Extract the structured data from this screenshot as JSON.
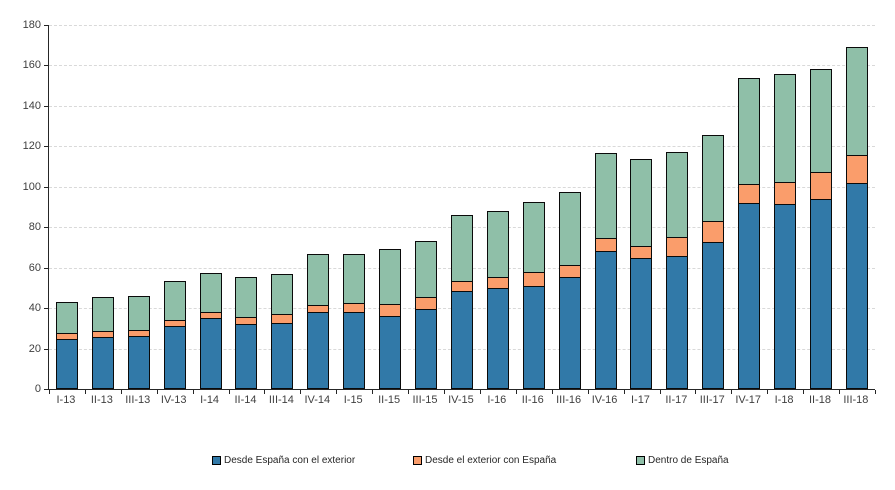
{
  "chart": {
    "background_color": "#FFFFFF",
    "axis_color": "#262626",
    "gridline_color": "#D9D9D9",
    "tick_label_color": "#3F3F3F",
    "bar_border_color": "#0A0A0A"
  },
  "chart_data": {
    "type": "bar",
    "stacked": true,
    "title": "",
    "xlabel": "",
    "ylabel": "",
    "ylim": [
      0,
      180
    ],
    "ytick_step": 20,
    "yticks": [
      0,
      20,
      40,
      60,
      80,
      100,
      120,
      140,
      160,
      180
    ],
    "grid": "horizontal-dashed",
    "legend_position": "bottom",
    "categories": [
      "I-13",
      "II-13",
      "III-13",
      "IV-13",
      "I-14",
      "II-14",
      "III-14",
      "IV-14",
      "I-15",
      "II-15",
      "III-15",
      "IV-15",
      "I-16",
      "II-16",
      "III-16",
      "IV-16",
      "I-17",
      "II-17",
      "III-17",
      "IV-17",
      "I-18",
      "II-18",
      "III-18"
    ],
    "series": [
      {
        "name": "Desde España con el exterior",
        "color": "#3179A8",
        "values": [
          24.7,
          25.5,
          26.2,
          31.2,
          35.3,
          32.0,
          32.5,
          38.2,
          37.9,
          36.1,
          39.4,
          48.6,
          49.8,
          51.1,
          55.5,
          68.3,
          65.0,
          66.0,
          72.9,
          91.8,
          91.5,
          93.8,
          102.0
        ]
      },
      {
        "name": "Desde el exterior con España",
        "color": "#FA9D6B",
        "values": [
          3.3,
          3.3,
          3.5,
          3.5,
          3.7,
          4.1,
          4.9,
          3.8,
          5.1,
          6.6,
          6.3,
          5.6,
          5.9,
          7.3,
          6.2,
          7.0,
          6.6,
          9.8,
          10.7,
          10.0,
          11.5,
          13.7,
          14.5
        ]
      },
      {
        "name": "Dentro de España",
        "color": "#8FBFA8",
        "values": [
          16.0,
          17.2,
          17.1,
          19.8,
          20.0,
          20.4,
          20.5,
          25.9,
          24.9,
          27.7,
          28.3,
          33.0,
          33.0,
          35.1,
          36.4,
          42.6,
          43.7,
          42.5,
          43.2,
          52.8,
          53.7,
          51.5,
          54.0
        ]
      }
    ],
    "totals": [
      44.0,
      46.0,
      46.8,
      54.5,
      59.0,
      56.5,
      57.9,
      67.9,
      67.9,
      70.4,
      74.0,
      87.2,
      88.7,
      93.5,
      98.1,
      117.9,
      115.3,
      118.3,
      126.8,
      154.6,
      156.7,
      159.0,
      170.5
    ]
  },
  "legend": {
    "items": [
      {
        "label": "Desde España con el exterior",
        "color": "#3179A8"
      },
      {
        "label": "Desde el exterior con España",
        "color": "#FA9D6B"
      },
      {
        "label": "Dentro de España",
        "color": "#8FBFA8"
      }
    ]
  }
}
